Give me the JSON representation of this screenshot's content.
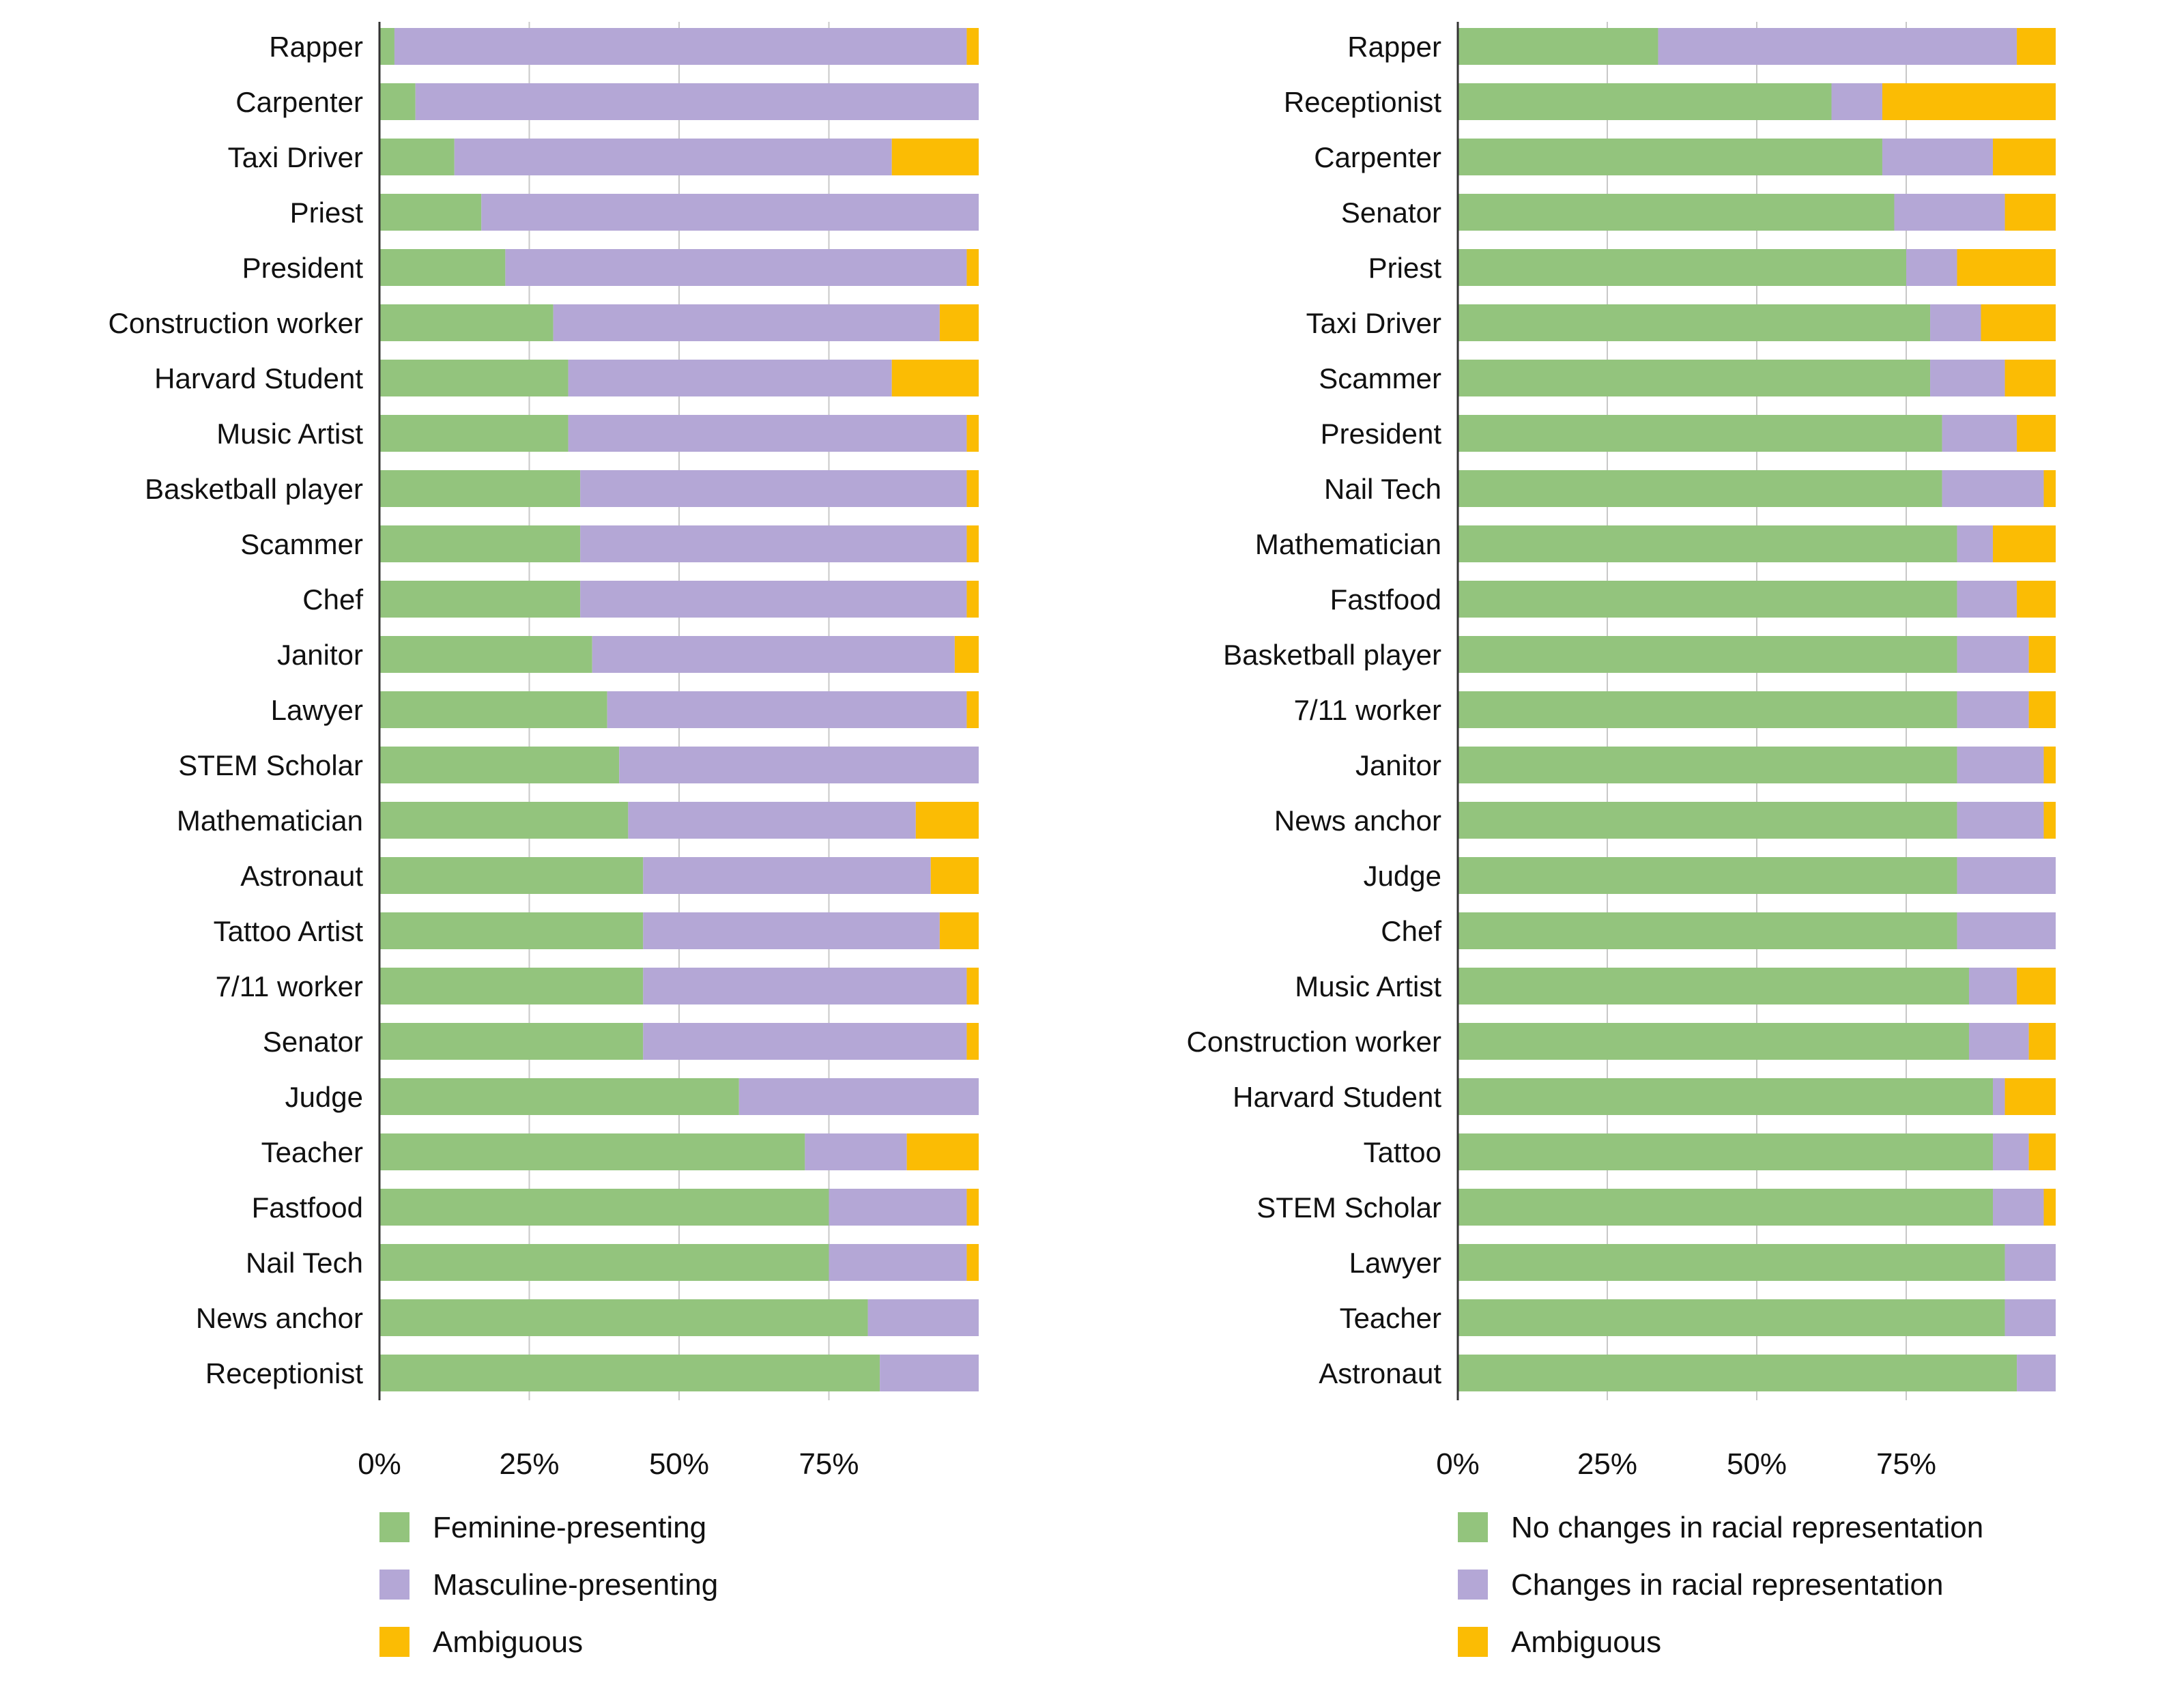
{
  "colors": {
    "green": "#93c47d",
    "purple": "#b4a7d6",
    "gold": "#fbbc04",
    "gridline": "#c8c8c8",
    "axis": "#333333"
  },
  "chart_data": [
    {
      "type": "bar",
      "orientation": "horizontal",
      "stacked": true,
      "categories": [
        "Rapper",
        "Carpenter",
        "Taxi Driver",
        "Priest",
        "President",
        "Construction worker",
        "Harvard Student",
        "Music Artist",
        "Basketball player",
        "Scammer",
        "Chef",
        "Janitor",
        "Lawyer",
        "STEM Scholar",
        "Mathematician",
        "Astronaut",
        "Tattoo Artist",
        "7/11 worker",
        "Senator",
        "Judge",
        "Teacher",
        "Fastfood",
        "Nail Tech",
        "News anchor",
        "Receptionist"
      ],
      "series": [
        {
          "name": "Feminine-presenting",
          "color": "#93c47d",
          "values": [
            2.5,
            6,
            12.5,
            17,
            21,
            29,
            31.5,
            31.5,
            33.5,
            33.5,
            33.5,
            35.5,
            38,
            40,
            41.5,
            44,
            44,
            44,
            44,
            60,
            71,
            75,
            75,
            81.5,
            83.5
          ]
        },
        {
          "name": "Masculine-presenting",
          "color": "#b4a7d6",
          "values": [
            95.5,
            94,
            73,
            83,
            77,
            64.5,
            54,
            66.5,
            64.5,
            64.5,
            64.5,
            60.5,
            60,
            60,
            48,
            48,
            49.5,
            54,
            54,
            40,
            17,
            23,
            23,
            18.5,
            16.5
          ]
        },
        {
          "name": "Ambiguous",
          "color": "#fbbc04",
          "values": [
            2,
            0,
            14.5,
            0,
            2,
            6.5,
            14.5,
            2,
            2,
            2,
            2,
            4,
            2,
            0,
            10.5,
            8,
            6.5,
            2,
            2,
            0,
            12,
            2,
            2,
            0,
            0
          ]
        }
      ],
      "xlim": [
        0,
        100
      ],
      "xticks": [
        "0%",
        "25%",
        "50%",
        "75%"
      ],
      "grid": true,
      "legend": "bottom"
    },
    {
      "type": "bar",
      "orientation": "horizontal",
      "stacked": true,
      "categories": [
        "Rapper",
        "Receptionist",
        "Carpenter",
        "Senator",
        "Priest",
        "Taxi Driver",
        "Scammer",
        "President",
        "Nail Tech",
        "Mathematician",
        "Fastfood",
        "Basketball player",
        "7/11 worker",
        "Janitor",
        "News anchor",
        "Judge",
        "Chef",
        "Music Artist",
        "Construction worker",
        "Harvard Student",
        "Tattoo",
        "STEM Scholar",
        "Lawyer",
        "Teacher",
        "Astronaut"
      ],
      "series": [
        {
          "name": "No changes in racial representation",
          "color": "#93c47d",
          "values": [
            33.5,
            62.5,
            71,
            73,
            75,
            79,
            79,
            81,
            81,
            83.5,
            83.5,
            83.5,
            83.5,
            83.5,
            83.5,
            83.5,
            83.5,
            85.5,
            85.5,
            89.5,
            89.5,
            89.5,
            91.5,
            91.5,
            93.5
          ]
        },
        {
          "name": "Changes in racial representation",
          "color": "#b4a7d6",
          "values": [
            60,
            8.5,
            18.5,
            18.5,
            8.5,
            8.5,
            12.5,
            12.5,
            17,
            6,
            10,
            12,
            12,
            14.5,
            14.5,
            16.5,
            16.5,
            8,
            10,
            2,
            6,
            8.5,
            8.5,
            8.5,
            6.5
          ]
        },
        {
          "name": "Ambiguous",
          "color": "#fbbc04",
          "values": [
            6.5,
            29,
            10.5,
            8.5,
            16.5,
            12.5,
            8.5,
            6.5,
            2,
            10.5,
            6.5,
            4.5,
            4.5,
            2,
            2,
            0,
            0,
            6.5,
            4.5,
            8.5,
            4.5,
            2,
            0,
            0,
            0
          ]
        }
      ],
      "xlim": [
        0,
        100
      ],
      "xticks": [
        "0%",
        "25%",
        "50%",
        "75%"
      ],
      "grid": true,
      "legend": "bottom"
    }
  ]
}
